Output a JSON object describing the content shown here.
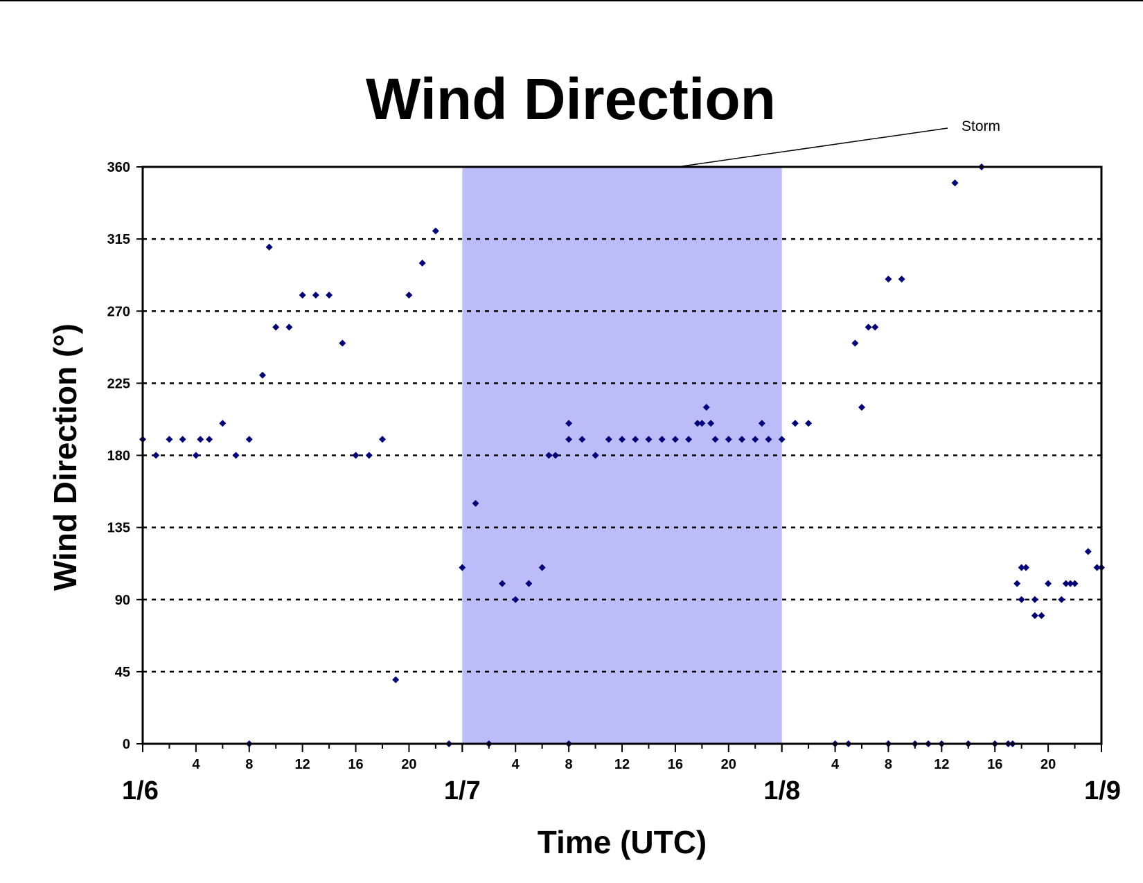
{
  "chart_data": {
    "type": "scatter",
    "title": "Wind Direction",
    "xlabel": "Time (UTC)",
    "ylabel": "Wind Direction (°)",
    "ylim": [
      0,
      360
    ],
    "yticks": [
      "0",
      "45",
      "90",
      "135",
      "180",
      "225",
      "270",
      "315",
      "360"
    ],
    "xlim": [
      "1/6 00:00",
      "1/9 00:00"
    ],
    "x_hour_ticks": [
      "4",
      "8",
      "12",
      "16",
      "20"
    ],
    "date_labels": [
      "1/6",
      "1/7",
      "1/8",
      "1/9"
    ],
    "grid": "horizontal dotted",
    "colors": {
      "marker": "#00007a",
      "storm_band": "#bcbcf9",
      "axis": "#000000"
    },
    "annotation": {
      "text": "Storm",
      "span": [
        "1/7 00:00",
        "1/8 00:00"
      ]
    },
    "series": [
      {
        "marker": "diamond",
        "points": [
          [
            "1/6 00:00",
            190
          ],
          [
            "1/6 01:00",
            180
          ],
          [
            "1/6 02:00",
            190
          ],
          [
            "1/6 03:00",
            190
          ],
          [
            "1/6 04:00",
            180
          ],
          [
            "1/6 04:20",
            190
          ],
          [
            "1/6 05:00",
            190
          ],
          [
            "1/6 06:00",
            200
          ],
          [
            "1/6 07:00",
            180
          ],
          [
            "1/6 08:00",
            190
          ],
          [
            "1/6 08:00",
            0
          ],
          [
            "1/6 09:00",
            230
          ],
          [
            "1/6 09:30",
            310
          ],
          [
            "1/6 10:00",
            260
          ],
          [
            "1/6 11:00",
            260
          ],
          [
            "1/6 12:00",
            280
          ],
          [
            "1/6 13:00",
            280
          ],
          [
            "1/6 14:00",
            280
          ],
          [
            "1/6 15:00",
            250
          ],
          [
            "1/6 16:00",
            180
          ],
          [
            "1/6 17:00",
            180
          ],
          [
            "1/6 18:00",
            190
          ],
          [
            "1/6 19:00",
            40
          ],
          [
            "1/6 20:00",
            280
          ],
          [
            "1/6 21:00",
            300
          ],
          [
            "1/6 22:00",
            320
          ],
          [
            "1/6 23:00",
            0
          ],
          [
            "1/7 00:00",
            110
          ],
          [
            "1/7 01:00",
            150
          ],
          [
            "1/7 02:00",
            0
          ],
          [
            "1/7 03:00",
            100
          ],
          [
            "1/7 04:00",
            90
          ],
          [
            "1/7 05:00",
            100
          ],
          [
            "1/7 06:00",
            110
          ],
          [
            "1/7 06:30",
            180
          ],
          [
            "1/7 07:00",
            180
          ],
          [
            "1/7 08:00",
            190
          ],
          [
            "1/7 08:00",
            200
          ],
          [
            "1/7 08:00",
            0
          ],
          [
            "1/7 09:00",
            190
          ],
          [
            "1/7 10:00",
            180
          ],
          [
            "1/7 11:00",
            190
          ],
          [
            "1/7 12:00",
            190
          ],
          [
            "1/7 13:00",
            190
          ],
          [
            "1/7 14:00",
            190
          ],
          [
            "1/7 15:00",
            190
          ],
          [
            "1/7 16:00",
            190
          ],
          [
            "1/7 17:00",
            190
          ],
          [
            "1/7 17:40",
            200
          ],
          [
            "1/7 18:00",
            200
          ],
          [
            "1/7 18:20",
            210
          ],
          [
            "1/7 18:40",
            200
          ],
          [
            "1/7 19:00",
            190
          ],
          [
            "1/7 20:00",
            190
          ],
          [
            "1/7 21:00",
            190
          ],
          [
            "1/7 22:00",
            190
          ],
          [
            "1/7 22:30",
            200
          ],
          [
            "1/7 23:00",
            190
          ],
          [
            "1/8 00:00",
            190
          ],
          [
            "1/8 01:00",
            200
          ],
          [
            "1/8 02:00",
            200
          ],
          [
            "1/8 04:00",
            0
          ],
          [
            "1/8 05:00",
            0
          ],
          [
            "1/8 05:30",
            250
          ],
          [
            "1/8 06:00",
            210
          ],
          [
            "1/8 06:30",
            260
          ],
          [
            "1/8 07:00",
            260
          ],
          [
            "1/8 08:00",
            290
          ],
          [
            "1/8 08:00",
            0
          ],
          [
            "1/8 09:00",
            290
          ],
          [
            "1/8 10:00",
            0
          ],
          [
            "1/8 11:00",
            0
          ],
          [
            "1/8 12:00",
            0
          ],
          [
            "1/8 13:00",
            350
          ],
          [
            "1/8 14:00",
            0
          ],
          [
            "1/8 15:00",
            360
          ],
          [
            "1/8 16:00",
            0
          ],
          [
            "1/8 17:00",
            0
          ],
          [
            "1/8 17:20",
            0
          ],
          [
            "1/8 17:40",
            100
          ],
          [
            "1/8 18:00",
            110
          ],
          [
            "1/8 18:00",
            90
          ],
          [
            "1/8 18:20",
            110
          ],
          [
            "1/8 19:00",
            90
          ],
          [
            "1/8 19:00",
            80
          ],
          [
            "1/8 19:30",
            80
          ],
          [
            "1/8 20:00",
            100
          ],
          [
            "1/8 21:00",
            90
          ],
          [
            "1/8 21:20",
            100
          ],
          [
            "1/8 21:40",
            100
          ],
          [
            "1/8 22:00",
            100
          ],
          [
            "1/8 23:00",
            120
          ],
          [
            "1/8 23:40",
            110
          ],
          [
            "1/9 00:00",
            110
          ]
        ]
      }
    ]
  }
}
